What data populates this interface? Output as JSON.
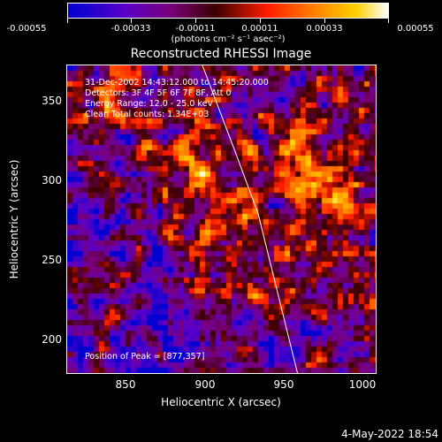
{
  "colorbar": {
    "ticks": [
      "-0.00055",
      "-0.00033",
      "-0.00011",
      "0.00011",
      "0.00033",
      "0.00055"
    ],
    "unit": "(photons cm⁻² s⁻¹ asec⁻²)",
    "colors": [
      "#0000d0",
      "#5a00c8",
      "#7a007a",
      "#3a0000",
      "#ff1a00",
      "#ff7a00",
      "#ffd000",
      "#ffffff"
    ]
  },
  "chart_data": {
    "type": "heatmap",
    "title": "Reconstructed RHESSI Image",
    "xlabel": "Heliocentric X (arcsec)",
    "ylabel": "Heliocentric Y (arcsec)",
    "xlim": [
      815,
      1010
    ],
    "ylim": [
      180,
      372
    ],
    "x_ticks": [
      "850",
      "900",
      "950",
      "1000"
    ],
    "y_ticks": [
      "200",
      "250",
      "300",
      "350"
    ],
    "value_range": [
      -0.00055,
      0.00055
    ],
    "info": {
      "time": "31-Dec-2002 14:43:12.000 to 14:45:20.000",
      "detectors": "Detectors: 3F 4F 5F 6F 7F 8F, Att 0",
      "energy": "Energy Range: 12.0 - 25.0 keV",
      "method_counts": "Clean    Total counts: 1.34E+03",
      "peak": "Position of Peak = [877,357]"
    },
    "limb_curve": {
      "x": [
        900,
        920,
        935,
        950,
        960
      ],
      "y": [
        372,
        320,
        280,
        220,
        180
      ]
    }
  },
  "footer": {
    "timestamp": "4-May-2022 18:54"
  }
}
